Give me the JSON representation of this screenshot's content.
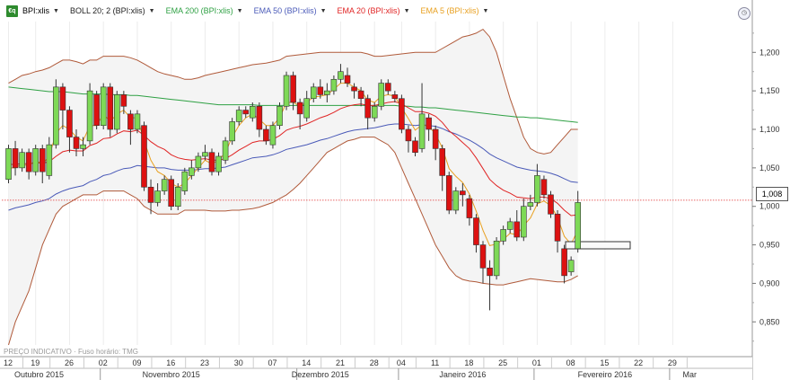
{
  "legend": {
    "symbol": "BPI:xlis",
    "items": [
      {
        "label": "BOLL 20; 2 (BPI:xlis)",
        "color": "#222222"
      },
      {
        "label": "EMA 200 (BPI:xlis)",
        "color": "#2ea043"
      },
      {
        "label": "EMA 50 (BPI:xlis)",
        "color": "#4a5ab8"
      },
      {
        "label": "EMA 20 (BPI:xlis)",
        "color": "#e02424"
      },
      {
        "label": "EMA 5 (BPI:xlis)",
        "color": "#e8a020"
      }
    ]
  },
  "footer": {
    "label": "PREÇO INDICATIVO · Fuso horário: TMG"
  },
  "last_price": {
    "label": "1,008"
  },
  "colors": {
    "up": "#7ed957",
    "down": "#dd1111",
    "bollinger": "#b05a3a",
    "band_fill": "#f4f4f4",
    "price_line": "#e03030",
    "grid": "#ececec"
  },
  "chart_data": {
    "type": "candlestick",
    "x_axis_ticks": [
      {
        "label": "12",
        "i": 0
      },
      {
        "label": "19",
        "i": 4
      },
      {
        "label": "26",
        "i": 9
      },
      {
        "label": "02",
        "i": 14
      },
      {
        "label": "09",
        "i": 19
      },
      {
        "label": "16",
        "i": 24
      },
      {
        "label": "23",
        "i": 29
      },
      {
        "label": "30",
        "i": 34
      },
      {
        "label": "07",
        "i": 39
      },
      {
        "label": "14",
        "i": 44
      },
      {
        "label": "21",
        "i": 49
      },
      {
        "label": "28",
        "i": 54
      },
      {
        "label": "04",
        "i": 58
      },
      {
        "label": "11",
        "i": 63
      },
      {
        "label": "18",
        "i": 68
      },
      {
        "label": "25",
        "i": 73
      },
      {
        "label": "01",
        "i": 78
      },
      {
        "label": "08",
        "i": 83
      },
      {
        "label": "15",
        "i": 88
      },
      {
        "label": "22",
        "i": 93
      },
      {
        "label": "29",
        "i": 98
      }
    ],
    "months": [
      {
        "label": "Outubro 2015",
        "i": 4.5
      },
      {
        "label": "Novembro 2015",
        "i": 24
      },
      {
        "label": "Dezembro 2015",
        "i": 46
      },
      {
        "label": "Janeiro 2016",
        "i": 67
      },
      {
        "label": "Fevereiro 2016",
        "i": 88
      },
      {
        "label": "Mar",
        "i": 100.5
      }
    ],
    "month_boundaries": [
      14,
      43,
      58,
      78,
      98
    ],
    "y_axis": {
      "ticks": [
        0.85,
        0.9,
        0.95,
        1.0,
        1.05,
        1.1,
        1.15,
        1.2
      ],
      "labels": [
        "0,850",
        "0,900",
        "0,950",
        "1,000",
        "1,050",
        "1,100",
        "1,150",
        "1,200"
      ],
      "ylim": [
        0.82,
        1.24
      ]
    },
    "last_price": 1.008,
    "candles": [
      [
        1.035,
        1.075,
        1.03,
        1.08
      ],
      [
        1.075,
        1.05,
        1.04,
        1.085
      ],
      [
        1.05,
        1.07,
        1.045,
        1.075
      ],
      [
        1.07,
        1.045,
        1.035,
        1.075
      ],
      [
        1.045,
        1.075,
        1.04,
        1.08
      ],
      [
        1.075,
        1.045,
        1.03,
        1.08
      ],
      [
        1.04,
        1.08,
        1.035,
        1.09
      ],
      [
        1.08,
        1.155,
        1.075,
        1.165
      ],
      [
        1.155,
        1.125,
        1.1,
        1.16
      ],
      [
        1.125,
        1.09,
        1.07,
        1.13
      ],
      [
        1.09,
        1.075,
        1.065,
        1.1
      ],
      [
        1.075,
        1.08,
        1.065,
        1.09
      ],
      [
        1.085,
        1.15,
        1.08,
        1.16
      ],
      [
        1.145,
        1.105,
        1.1,
        1.15
      ],
      [
        1.105,
        1.155,
        1.1,
        1.16
      ],
      [
        1.155,
        1.1,
        1.09,
        1.16
      ],
      [
        1.1,
        1.145,
        1.095,
        1.15
      ],
      [
        1.145,
        1.13,
        1.12,
        1.15
      ],
      [
        1.12,
        1.1,
        1.08,
        1.125
      ],
      [
        1.1,
        1.12,
        1.095,
        1.125
      ],
      [
        1.105,
        1.025,
        1.02,
        1.11
      ],
      [
        1.025,
        1.005,
        0.99,
        1.035
      ],
      [
        1.005,
        1.02,
        1.0,
        1.03
      ],
      [
        1.02,
        1.035,
        1.015,
        1.04
      ],
      [
        1.035,
        1.0,
        0.995,
        1.04
      ],
      [
        1.0,
        1.025,
        0.995,
        1.03
      ],
      [
        1.02,
        1.045,
        1.015,
        1.05
      ],
      [
        1.04,
        1.05,
        1.035,
        1.06
      ],
      [
        1.05,
        1.065,
        1.045,
        1.07
      ],
      [
        1.065,
        1.07,
        1.06,
        1.08
      ],
      [
        1.07,
        1.045,
        1.04,
        1.075
      ],
      [
        1.045,
        1.065,
        1.04,
        1.07
      ],
      [
        1.06,
        1.085,
        1.055,
        1.09
      ],
      [
        1.085,
        1.11,
        1.08,
        1.115
      ],
      [
        1.11,
        1.125,
        1.105,
        1.13
      ],
      [
        1.125,
        1.12,
        1.115,
        1.13
      ],
      [
        1.115,
        1.13,
        1.11,
        1.135
      ],
      [
        1.13,
        1.1,
        1.09,
        1.135
      ],
      [
        1.1,
        1.085,
        1.08,
        1.105
      ],
      [
        1.08,
        1.105,
        1.075,
        1.11
      ],
      [
        1.105,
        1.13,
        1.1,
        1.135
      ],
      [
        1.13,
        1.17,
        1.125,
        1.175
      ],
      [
        1.17,
        1.135,
        1.125,
        1.175
      ],
      [
        1.135,
        1.12,
        1.1,
        1.14
      ],
      [
        1.115,
        1.14,
        1.11,
        1.15
      ],
      [
        1.14,
        1.155,
        1.135,
        1.16
      ],
      [
        1.155,
        1.145,
        1.14,
        1.165
      ],
      [
        1.145,
        1.15,
        1.135,
        1.16
      ],
      [
        1.15,
        1.165,
        1.145,
        1.17
      ],
      [
        1.165,
        1.175,
        1.16,
        1.185
      ],
      [
        1.17,
        1.16,
        1.155,
        1.18
      ],
      [
        1.155,
        1.15,
        1.14,
        1.16
      ],
      [
        1.15,
        1.14,
        1.13,
        1.155
      ],
      [
        1.14,
        1.115,
        1.1,
        1.145
      ],
      [
        1.115,
        1.13,
        1.11,
        1.135
      ],
      [
        1.13,
        1.16,
        1.125,
        1.165
      ],
      [
        1.16,
        1.15,
        1.145,
        1.165
      ],
      [
        1.145,
        1.14,
        1.135,
        1.15
      ],
      [
        1.14,
        1.1,
        1.095,
        1.145
      ],
      [
        1.1,
        1.085,
        1.07,
        1.105
      ],
      [
        1.085,
        1.07,
        1.065,
        1.09
      ],
      [
        1.075,
        1.12,
        1.07,
        1.16
      ],
      [
        1.115,
        1.1,
        1.085,
        1.12
      ],
      [
        1.1,
        1.075,
        1.06,
        1.105
      ],
      [
        1.075,
        1.04,
        1.02,
        1.08
      ],
      [
        1.04,
        0.995,
        0.99,
        1.045
      ],
      [
        0.995,
        1.02,
        0.99,
        1.025
      ],
      [
        1.02,
        1.015,
        1.0,
        1.03
      ],
      [
        1.01,
        0.985,
        0.975,
        1.015
      ],
      [
        0.985,
        0.95,
        0.94,
        0.99
      ],
      [
        0.95,
        0.92,
        0.9,
        0.955
      ],
      [
        0.92,
        0.91,
        0.865,
        0.93
      ],
      [
        0.91,
        0.955,
        0.905,
        0.96
      ],
      [
        0.955,
        0.97,
        0.95,
        0.975
      ],
      [
        0.97,
        0.98,
        0.965,
        0.985
      ],
      [
        0.98,
        0.96,
        0.955,
        0.995
      ],
      [
        0.96,
        1.0,
        0.955,
        1.01
      ],
      [
        1.0,
        1.005,
        0.995,
        1.015
      ],
      [
        1.005,
        1.04,
        1.0,
        1.055
      ],
      [
        1.035,
        1.015,
        1.01,
        1.04
      ],
      [
        1.015,
        0.99,
        0.985,
        1.02
      ],
      [
        0.99,
        0.955,
        0.94,
        0.995
      ],
      [
        0.945,
        0.91,
        0.9,
        0.95
      ],
      [
        0.915,
        0.93,
        0.91,
        0.935
      ],
      [
        0.945,
        1.005,
        0.94,
        1.02
      ]
    ],
    "ema5": [
      1.05,
      1.05,
      1.055,
      1.052,
      1.06,
      1.055,
      1.065,
      1.095,
      1.105,
      1.1,
      1.09,
      1.085,
      1.105,
      1.105,
      1.12,
      1.11,
      1.12,
      1.125,
      1.115,
      1.115,
      1.085,
      1.06,
      1.045,
      1.04,
      1.03,
      1.025,
      1.03,
      1.04,
      1.05,
      1.06,
      1.055,
      1.06,
      1.07,
      1.09,
      1.105,
      1.115,
      1.12,
      1.113,
      1.105,
      1.105,
      1.115,
      1.135,
      1.135,
      1.13,
      1.135,
      1.142,
      1.143,
      1.145,
      1.152,
      1.16,
      1.16,
      1.155,
      1.15,
      1.138,
      1.135,
      1.143,
      1.145,
      1.143,
      1.128,
      1.114,
      1.099,
      1.106,
      1.104,
      1.094,
      1.076,
      1.049,
      1.039,
      1.031,
      1.016,
      0.994,
      0.969,
      0.949,
      0.951,
      0.957,
      0.965,
      0.963,
      0.975,
      0.985,
      1.003,
      1.007,
      1.001,
      0.986,
      0.961,
      0.951,
      0.969
    ],
    "ema20": [
      1.055,
      1.054,
      1.056,
      1.055,
      1.057,
      1.056,
      1.058,
      1.065,
      1.071,
      1.073,
      1.072,
      1.072,
      1.079,
      1.082,
      1.088,
      1.089,
      1.094,
      1.098,
      1.097,
      1.099,
      1.092,
      1.084,
      1.078,
      1.074,
      1.067,
      1.063,
      1.061,
      1.06,
      1.061,
      1.062,
      1.06,
      1.06,
      1.062,
      1.067,
      1.073,
      1.078,
      1.083,
      1.085,
      1.085,
      1.087,
      1.092,
      1.099,
      1.102,
      1.104,
      1.107,
      1.111,
      1.115,
      1.118,
      1.122,
      1.127,
      1.13,
      1.132,
      1.133,
      1.131,
      1.131,
      1.133,
      1.135,
      1.136,
      1.133,
      1.128,
      1.123,
      1.123,
      1.121,
      1.117,
      1.109,
      1.098,
      1.091,
      1.083,
      1.075,
      1.063,
      1.049,
      1.035,
      1.027,
      1.021,
      1.017,
      1.012,
      1.011,
      1.01,
      1.012,
      1.012,
      1.01,
      1.004,
      0.995,
      0.988,
      0.989
    ],
    "ema50": [
      0.995,
      0.998,
      1.0,
      1.002,
      1.005,
      1.007,
      1.01,
      1.016,
      1.02,
      1.023,
      1.025,
      1.027,
      1.032,
      1.035,
      1.04,
      1.042,
      1.046,
      1.049,
      1.05,
      1.053,
      1.052,
      1.051,
      1.05,
      1.05,
      1.048,
      1.047,
      1.047,
      1.047,
      1.048,
      1.049,
      1.049,
      1.05,
      1.051,
      1.054,
      1.057,
      1.06,
      1.063,
      1.064,
      1.065,
      1.067,
      1.07,
      1.074,
      1.076,
      1.078,
      1.08,
      1.083,
      1.086,
      1.088,
      1.091,
      1.094,
      1.097,
      1.099,
      1.1,
      1.101,
      1.102,
      1.104,
      1.106,
      1.107,
      1.107,
      1.106,
      1.105,
      1.106,
      1.105,
      1.104,
      1.101,
      1.097,
      1.094,
      1.09,
      1.086,
      1.081,
      1.075,
      1.068,
      1.063,
      1.059,
      1.055,
      1.051,
      1.049,
      1.047,
      1.046,
      1.045,
      1.043,
      1.04,
      1.036,
      1.032,
      1.031
    ],
    "ema200": [
      1.155,
      1.154,
      1.153,
      1.152,
      1.151,
      1.15,
      1.149,
      1.149,
      1.149,
      1.148,
      1.147,
      1.146,
      1.146,
      1.146,
      1.146,
      1.145,
      1.145,
      1.145,
      1.144,
      1.144,
      1.143,
      1.142,
      1.141,
      1.14,
      1.139,
      1.138,
      1.137,
      1.136,
      1.135,
      1.134,
      1.133,
      1.132,
      1.132,
      1.132,
      1.132,
      1.132,
      1.132,
      1.131,
      1.131,
      1.131,
      1.131,
      1.131,
      1.131,
      1.131,
      1.131,
      1.131,
      1.131,
      1.131,
      1.131,
      1.131,
      1.131,
      1.131,
      1.131,
      1.131,
      1.131,
      1.131,
      1.131,
      1.131,
      1.13,
      1.13,
      1.129,
      1.129,
      1.128,
      1.128,
      1.127,
      1.126,
      1.125,
      1.124,
      1.123,
      1.122,
      1.121,
      1.12,
      1.119,
      1.118,
      1.117,
      1.116,
      1.116,
      1.115,
      1.115,
      1.114,
      1.113,
      1.112,
      1.111,
      1.11,
      1.109
    ],
    "boll_upper": [
      1.16,
      1.165,
      1.17,
      1.172,
      1.175,
      1.177,
      1.18,
      1.185,
      1.19,
      1.19,
      1.188,
      1.185,
      1.19,
      1.19,
      1.195,
      1.195,
      1.195,
      1.195,
      1.193,
      1.19,
      1.185,
      1.18,
      1.175,
      1.172,
      1.17,
      1.168,
      1.165,
      1.165,
      1.167,
      1.17,
      1.172,
      1.174,
      1.176,
      1.178,
      1.18,
      1.182,
      1.184,
      1.185,
      1.186,
      1.188,
      1.19,
      1.195,
      1.196,
      1.197,
      1.198,
      1.199,
      1.2,
      1.2,
      1.2,
      1.2,
      1.2,
      1.2,
      1.2,
      1.198,
      1.195,
      1.195,
      1.196,
      1.197,
      1.198,
      1.199,
      1.2,
      1.2,
      1.2,
      1.2,
      1.205,
      1.21,
      1.215,
      1.22,
      1.222,
      1.225,
      1.23,
      1.22,
      1.2,
      1.17,
      1.14,
      1.115,
      1.09,
      1.075,
      1.07,
      1.068,
      1.07,
      1.08,
      1.09,
      1.1,
      1.1
    ],
    "boll_lower": [
      0.82,
      0.85,
      0.87,
      0.89,
      0.92,
      0.95,
      0.97,
      0.99,
      1.0,
      1.005,
      1.01,
      1.015,
      1.015,
      1.015,
      1.02,
      1.02,
      1.02,
      1.02,
      1.015,
      1.01,
      1.0,
      0.995,
      0.99,
      0.99,
      0.99,
      0.99,
      0.995,
      0.995,
      0.995,
      0.995,
      0.994,
      0.994,
      0.994,
      0.995,
      0.995,
      0.996,
      0.997,
      0.999,
      1.002,
      1.005,
      1.01,
      1.015,
      1.022,
      1.03,
      1.04,
      1.05,
      1.06,
      1.07,
      1.075,
      1.08,
      1.085,
      1.087,
      1.09,
      1.09,
      1.09,
      1.085,
      1.08,
      1.07,
      1.05,
      1.03,
      1.01,
      0.99,
      0.97,
      0.95,
      0.935,
      0.92,
      0.91,
      0.905,
      0.903,
      0.902,
      0.9,
      0.899,
      0.898,
      0.898,
      0.9,
      0.902,
      0.904,
      0.906,
      0.905,
      0.904,
      0.903,
      0.902,
      0.902,
      0.905,
      0.91
    ]
  }
}
